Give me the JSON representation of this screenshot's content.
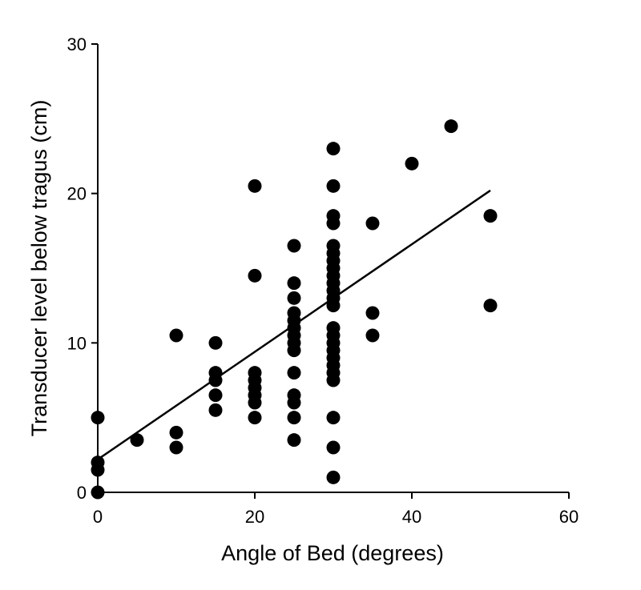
{
  "chart_data": {
    "type": "scatter",
    "xlabel": "Angle of Bed (degrees)",
    "ylabel": "Transducer level below tragus (cm)",
    "xlim": [
      0,
      60
    ],
    "ylim": [
      0,
      30
    ],
    "xticks": [
      "0",
      "20",
      "40",
      "60"
    ],
    "yticks": [
      "0",
      "10",
      "20",
      "30"
    ],
    "grid": false,
    "points": [
      {
        "x": 0,
        "y": 0
      },
      {
        "x": 0,
        "y": 1.5
      },
      {
        "x": 0,
        "y": 2
      },
      {
        "x": 0,
        "y": 5
      },
      {
        "x": 5,
        "y": 3.5
      },
      {
        "x": 10,
        "y": 3
      },
      {
        "x": 10,
        "y": 4
      },
      {
        "x": 10,
        "y": 10.5
      },
      {
        "x": 15,
        "y": 5.5
      },
      {
        "x": 15,
        "y": 6.5
      },
      {
        "x": 15,
        "y": 7.5
      },
      {
        "x": 15,
        "y": 8
      },
      {
        "x": 15,
        "y": 10
      },
      {
        "x": 20,
        "y": 5
      },
      {
        "x": 20,
        "y": 6
      },
      {
        "x": 20,
        "y": 6.5
      },
      {
        "x": 20,
        "y": 7
      },
      {
        "x": 20,
        "y": 7.5
      },
      {
        "x": 20,
        "y": 8
      },
      {
        "x": 20,
        "y": 14.5
      },
      {
        "x": 20,
        "y": 20.5
      },
      {
        "x": 25,
        "y": 3.5
      },
      {
        "x": 25,
        "y": 5
      },
      {
        "x": 25,
        "y": 6
      },
      {
        "x": 25,
        "y": 6.5
      },
      {
        "x": 25,
        "y": 8
      },
      {
        "x": 25,
        "y": 9.5
      },
      {
        "x": 25,
        "y": 10
      },
      {
        "x": 25,
        "y": 10.5
      },
      {
        "x": 25,
        "y": 11
      },
      {
        "x": 25,
        "y": 11.5
      },
      {
        "x": 25,
        "y": 12
      },
      {
        "x": 25,
        "y": 13
      },
      {
        "x": 25,
        "y": 14
      },
      {
        "x": 25,
        "y": 16.5
      },
      {
        "x": 30,
        "y": 1
      },
      {
        "x": 30,
        "y": 3
      },
      {
        "x": 30,
        "y": 5
      },
      {
        "x": 30,
        "y": 7.5
      },
      {
        "x": 30,
        "y": 8
      },
      {
        "x": 30,
        "y": 8.5
      },
      {
        "x": 30,
        "y": 9
      },
      {
        "x": 30,
        "y": 9.5
      },
      {
        "x": 30,
        "y": 10
      },
      {
        "x": 30,
        "y": 10.5
      },
      {
        "x": 30,
        "y": 11
      },
      {
        "x": 30,
        "y": 12.5
      },
      {
        "x": 30,
        "y": 13
      },
      {
        "x": 30,
        "y": 13.5
      },
      {
        "x": 30,
        "y": 14
      },
      {
        "x": 30,
        "y": 14.5
      },
      {
        "x": 30,
        "y": 15
      },
      {
        "x": 30,
        "y": 15.5
      },
      {
        "x": 30,
        "y": 16
      },
      {
        "x": 30,
        "y": 16.5
      },
      {
        "x": 30,
        "y": 18
      },
      {
        "x": 30,
        "y": 18.5
      },
      {
        "x": 30,
        "y": 20.5
      },
      {
        "x": 30,
        "y": 23
      },
      {
        "x": 35,
        "y": 10.5
      },
      {
        "x": 35,
        "y": 12
      },
      {
        "x": 35,
        "y": 18
      },
      {
        "x": 40,
        "y": 22
      },
      {
        "x": 45,
        "y": 24.5
      },
      {
        "x": 50,
        "y": 12.5
      },
      {
        "x": 50,
        "y": 18.5
      }
    ],
    "fit_line": {
      "x": [
        0,
        50
      ],
      "y": [
        2.2,
        20.2
      ]
    }
  }
}
